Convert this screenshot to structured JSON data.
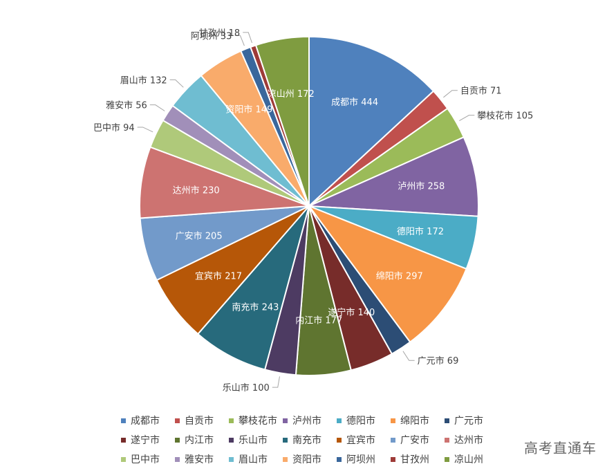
{
  "chart_data": {
    "type": "pie",
    "categories": [
      "成都市",
      "自贡市",
      "攀枝花市",
      "泸州市",
      "德阳市",
      "绵阳市",
      "广元市",
      "遂宁市",
      "内江市",
      "乐山市",
      "南充市",
      "宜宾市",
      "广安市",
      "达州市",
      "巴中市",
      "雅安市",
      "眉山市",
      "资阳市",
      "阿坝州",
      "甘孜州",
      "凉山州"
    ],
    "values": [
      444,
      71,
      105,
      258,
      172,
      297,
      69,
      140,
      177,
      100,
      243,
      217,
      205,
      230,
      94,
      56,
      132,
      149,
      33,
      18,
      172
    ],
    "colors": [
      "#4F81BD",
      "#C0504D",
      "#9BBB59",
      "#8064A2",
      "#4BACC6",
      "#F79646",
      "#2C4D75",
      "#772C2A",
      "#5F7530",
      "#4D3B62",
      "#276A7C",
      "#B65708",
      "#729ACA",
      "#CD7371",
      "#AFC97A",
      "#A18FB9",
      "#6FBDD1",
      "#F9AB6B",
      "#3A679C",
      "#9E3B38",
      "#7F9C40"
    ],
    "label_inside": [
      true,
      false,
      false,
      true,
      true,
      true,
      false,
      true,
      true,
      false,
      true,
      true,
      true,
      true,
      false,
      false,
      false,
      true,
      false,
      false,
      true
    ],
    "legend_position": "bottom"
  },
  "watermark": "高考直通车"
}
